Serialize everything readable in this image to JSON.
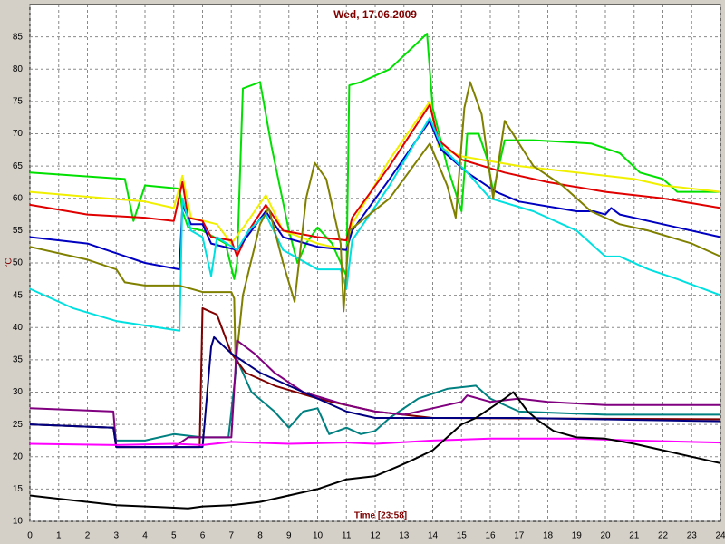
{
  "chart_data": {
    "type": "line",
    "title": "Wed, 17.06.2009",
    "y_label": "°C",
    "x_label": "Time [23:58]",
    "xlim": [
      0,
      24
    ],
    "xticks": [
      0,
      1,
      2,
      3,
      4,
      5,
      6,
      7,
      8,
      9,
      10,
      11,
      12,
      13,
      14,
      15,
      16,
      17,
      18,
      19,
      20,
      21,
      22,
      23,
      24
    ],
    "ylim": [
      10,
      90
    ],
    "yticks": [
      10,
      15,
      20,
      25,
      30,
      35,
      40,
      45,
      50,
      55,
      60,
      65,
      70,
      75,
      80,
      85
    ],
    "grid": true,
    "series": [
      {
        "color": "#00e000",
        "x": [
          0,
          3.3,
          3.6,
          4,
          5.2,
          5.3,
          5.5,
          6,
          6.8,
          7.1,
          7.2,
          7.4,
          8,
          8.4,
          9,
          9.3,
          9.6,
          10,
          10.5,
          10.8,
          11,
          11.1,
          11.5,
          12.5,
          13.8,
          14,
          14.5,
          15,
          15.2,
          15.6,
          15.9,
          16.1,
          16.5,
          17.5,
          19.5,
          20.5,
          21.2,
          22,
          22.5,
          24
        ],
        "values": [
          64,
          63,
          56.5,
          62,
          61.5,
          58,
          55.5,
          55,
          53,
          47.5,
          50,
          77,
          78,
          68,
          55,
          50,
          53,
          55.5,
          53,
          50,
          48,
          77.5,
          78,
          80,
          85.5,
          74,
          65,
          58,
          70,
          70,
          66,
          61,
          69,
          69,
          68.5,
          67,
          64,
          63,
          61,
          61
        ]
      },
      {
        "color": "#f0f000",
        "x": [
          0,
          4,
          5,
          5.3,
          5.6,
          6.5,
          7,
          7.5,
          8.2,
          8.8,
          10,
          11,
          11.2,
          12.5,
          13.9,
          14.2,
          15,
          17,
          19,
          21,
          22,
          24
        ],
        "values": [
          61,
          59.5,
          58.5,
          63.5,
          57,
          56,
          53,
          56,
          60.5,
          55,
          53,
          52,
          56,
          66,
          75,
          68,
          66.5,
          65,
          64,
          63,
          62,
          61
        ]
      },
      {
        "color": "#e00000",
        "x": [
          0,
          2,
          4,
          5,
          5.3,
          5.5,
          6,
          6.3,
          7,
          7.2,
          7.6,
          8.2,
          8.8,
          10,
          11,
          11.2,
          12.5,
          13.9,
          14.2,
          15,
          16.5,
          18,
          20,
          22,
          24
        ],
        "values": [
          59,
          57.5,
          57,
          56.5,
          62.5,
          57,
          56.5,
          54,
          53.5,
          51,
          55,
          59,
          55,
          54,
          53.5,
          57,
          65,
          74.5,
          69,
          66,
          64,
          62.5,
          61,
          60,
          58.5
        ]
      },
      {
        "color": "#0000c0",
        "x": [
          0,
          2,
          3,
          4,
          5.2,
          5.3,
          5.6,
          6,
          6.3,
          7.2,
          7.7,
          8.2,
          8.8,
          10,
          11,
          11.2,
          12.5,
          13.9,
          14.3,
          15.2,
          16.2,
          17,
          19,
          19.6,
          20,
          20.2,
          20.5,
          22,
          24
        ],
        "values": [
          54,
          53,
          51.5,
          50,
          49,
          59,
          56,
          56,
          53,
          52,
          55,
          58,
          54,
          52.5,
          52,
          55,
          63,
          72,
          67.5,
          64,
          61,
          59.5,
          58,
          58,
          57.5,
          58.5,
          57.5,
          56,
          54
        ]
      },
      {
        "color": "#00e0e0",
        "x": [
          0,
          1.5,
          3,
          5.2,
          5.3,
          5.6,
          6,
          6.3,
          6.5,
          7.2,
          7.6,
          8.2,
          8.8,
          10,
          10.8,
          11,
          11.2,
          12.5,
          13.9,
          14.3,
          15.2,
          16,
          17.5,
          19,
          20,
          20.5,
          21.5,
          22.5,
          24
        ],
        "values": [
          46,
          43,
          41,
          39.5,
          60,
          55,
          54,
          48,
          54,
          52,
          55,
          57.5,
          52,
          49,
          49,
          46,
          53.5,
          62,
          72.5,
          68,
          64,
          60,
          58,
          55,
          51,
          51,
          49,
          47.5,
          45
        ]
      },
      {
        "color": "#808000",
        "x": [
          0,
          2,
          3,
          3.3,
          4,
          5.2,
          6,
          7,
          7.1,
          7.15,
          7.4,
          8,
          8.3,
          8.8,
          9.2,
          9.6,
          9.9,
          10.3,
          10.8,
          10.9,
          11.1,
          12.5,
          13.9,
          14.5,
          14.8,
          15.1,
          15.3,
          15.7,
          16.1,
          16.5,
          17.5,
          18.5,
          19.5,
          20.5,
          21.5,
          23,
          24
        ],
        "values": [
          52.5,
          50.5,
          49,
          47,
          46.5,
          46.5,
          45.5,
          45.5,
          44.5,
          34,
          45,
          56,
          58.5,
          50,
          44,
          60,
          65.5,
          63,
          53,
          42.5,
          55,
          60,
          68.5,
          62,
          57,
          74,
          78,
          73,
          60,
          72,
          65,
          62,
          58,
          56,
          55,
          53,
          51
        ]
      },
      {
        "color": "#008080",
        "x": [
          0,
          2.9,
          3,
          4,
          5,
          6,
          6.9,
          7.2,
          7.7,
          8.5,
          9,
          9.5,
          10,
          10.4,
          11,
          11.5,
          12,
          12.5,
          13.5,
          14.5,
          15.5,
          16,
          17,
          20,
          24
        ],
        "values": [
          25,
          24.5,
          22.5,
          22.5,
          23.5,
          23,
          23,
          35,
          30,
          27,
          24.5,
          27,
          27.5,
          23.5,
          24.5,
          23.5,
          24,
          26,
          29,
          30.5,
          31,
          29,
          27,
          26.5,
          26.5
        ]
      },
      {
        "color": "#800000",
        "x": [
          0,
          2.9,
          3,
          5.9,
          6,
          6.5,
          7,
          7.5,
          8.5,
          10,
          12,
          14,
          24
        ],
        "values": [
          25,
          24.5,
          21.5,
          21.5,
          43,
          42,
          36,
          33,
          31,
          29,
          27,
          26,
          25.8
        ]
      },
      {
        "color": "#800080",
        "x": [
          0,
          2.9,
          3,
          5,
          5.5,
          7,
          7.2,
          7.8,
          8.5,
          9.5,
          11,
          12,
          13,
          14,
          15,
          15.2,
          16,
          17,
          18,
          20,
          24
        ],
        "values": [
          27.5,
          27,
          21.5,
          21.5,
          23,
          23,
          38,
          36,
          33,
          30,
          28,
          27,
          26.5,
          27.5,
          28.5,
          29.5,
          28.5,
          29,
          28.5,
          28,
          28
        ]
      },
      {
        "color": "#000080",
        "x": [
          0,
          2.9,
          3,
          6,
          6.3,
          6.4,
          7,
          8,
          9.5,
          11,
          12,
          14,
          17,
          24
        ],
        "values": [
          25,
          24.5,
          21.5,
          21.5,
          37,
          38.5,
          36,
          33,
          30,
          27,
          26,
          26,
          26,
          25.5
        ]
      },
      {
        "color": "#ff00ff",
        "x": [
          0,
          3,
          5,
          6,
          7,
          9,
          11,
          12,
          14,
          16,
          19,
          21,
          24
        ],
        "values": [
          22,
          21.8,
          22,
          21.8,
          22.3,
          22,
          22.2,
          22,
          22.5,
          22.8,
          22.8,
          22.5,
          22.2
        ]
      },
      {
        "color": "#000000",
        "x": [
          0,
          1,
          2,
          3,
          4.5,
          5.5,
          6,
          7,
          8,
          9,
          10,
          11,
          12,
          12.8,
          13.3,
          14,
          14.5,
          15,
          15.5,
          16,
          16.5,
          16.8,
          17.3,
          17.7,
          18.2,
          19,
          20,
          21,
          22,
          23,
          24
        ],
        "values": [
          14,
          13.5,
          13,
          12.5,
          12.2,
          12,
          12.3,
          12.5,
          13,
          14,
          15,
          16.5,
          17,
          18.5,
          19.5,
          21,
          23,
          25,
          26,
          27.5,
          29,
          30,
          27,
          25.5,
          24,
          23,
          22.8,
          22,
          21,
          20,
          19
        ]
      }
    ]
  }
}
